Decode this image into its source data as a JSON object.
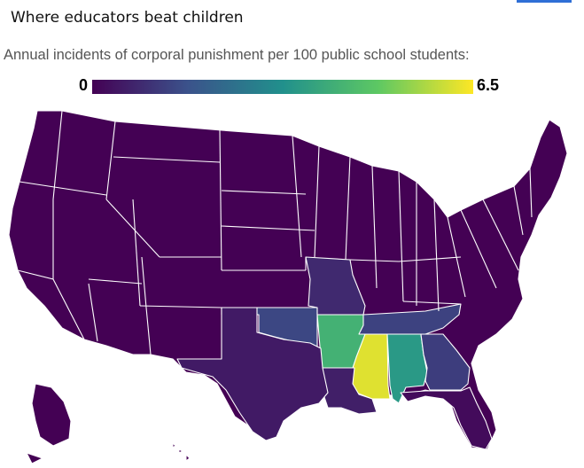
{
  "title": "Where educators beat children",
  "subtitle": "Annual incidents of corporal punishment per 100 public school students:",
  "legend": {
    "min_label": "0",
    "max_label": "6.5",
    "min": 0,
    "max": 6.5
  },
  "colors": {
    "scale": [
      "#440154",
      "#3b528b",
      "#21908c",
      "#5dc863",
      "#fde725"
    ],
    "border": "#ffffff",
    "accent": "#2f6fd6"
  },
  "map_data": {
    "type": "choropleth",
    "region": "United States",
    "values_per_100_students": {
      "Mississippi": 6.2,
      "Arkansas": 4.2,
      "Alabama": 3.5,
      "Oklahoma": 1.4,
      "Georgia": 1.2,
      "Tennessee": 1.3,
      "Missouri": 0.8,
      "Louisiana": 0.6,
      "Texas": 0.5,
      "Florida": 0.2
    },
    "other_states_value": 0
  }
}
